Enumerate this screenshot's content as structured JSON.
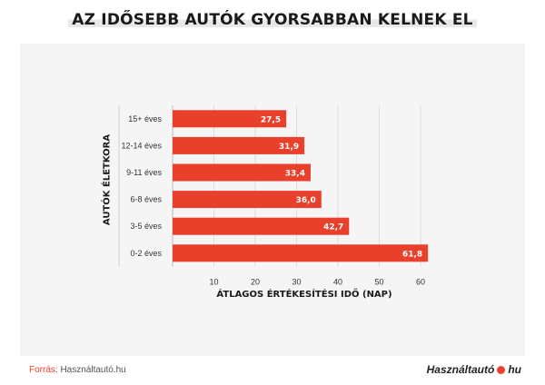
{
  "title": "AZ IDŐSEBB AUTÓK GYORSABBAN KELNEK EL",
  "source_label": "Forrás:",
  "source_value": "Használtautó.hu",
  "logo": {
    "text": "Használtautó",
    "suffix": "hu"
  },
  "colors": {
    "bar": "#e8402a",
    "grid": "#dcdcdc",
    "panel": "#f5f5f5"
  },
  "chart_data": {
    "type": "bar",
    "orientation": "horizontal",
    "title": "AZ IDŐSEBB AUTÓK GYORSABBAN KELNEK EL",
    "categories": [
      "15+ éves",
      "12-14 éves",
      "9-11 éves",
      "6-8 éves",
      "3-5 éves",
      "0-2 éves"
    ],
    "values": [
      27.5,
      31.9,
      33.4,
      36.0,
      42.7,
      61.8
    ],
    "value_labels": [
      "27,5",
      "31,9",
      "33,4",
      "36,0",
      "42,7",
      "61,8"
    ],
    "xlabel": "ÁTLAGOS ÉRTÉKESÍTÉSI IDŐ (NAP)",
    "ylabel": "AUTÓK ÉLETKORA",
    "xlim": [
      0,
      70
    ],
    "xticks": [
      10,
      20,
      30,
      40,
      50,
      60
    ],
    "grid": true,
    "legend": "none"
  }
}
